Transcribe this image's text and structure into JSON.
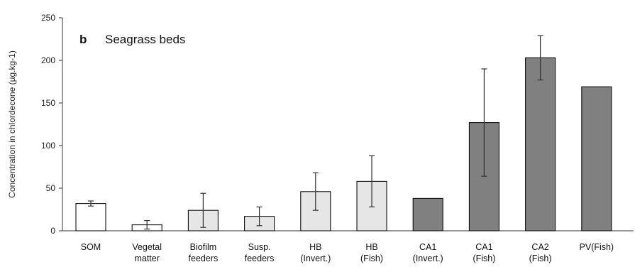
{
  "chart_data": {
    "type": "bar",
    "panel_letter": "b",
    "title": "Seagrass beds",
    "ylabel": "Concentration in chlordecone (µg.kg-1)",
    "xlabel": "",
    "ylim": [
      0,
      250
    ],
    "yticks": [
      0,
      50,
      100,
      150,
      200,
      250
    ],
    "categories": [
      [
        "SOM"
      ],
      [
        "Vegetal",
        "matter"
      ],
      [
        "Biofilm",
        "feeders"
      ],
      [
        "Susp.",
        "feeders"
      ],
      [
        "HB",
        "(Invert.)"
      ],
      [
        "HB",
        "(Fish)"
      ],
      [
        "CA1",
        "(Invert.)"
      ],
      [
        "CA1",
        "(Fish)"
      ],
      [
        "CA2",
        "(Fish)"
      ],
      [
        "PV(Fish)"
      ]
    ],
    "values": [
      32,
      7,
      24,
      17,
      46,
      58,
      38,
      127,
      203,
      169
    ],
    "errors": [
      3,
      5,
      20,
      11,
      22,
      30,
      null,
      63,
      26,
      null
    ],
    "fills": [
      "#ffffff",
      "#ffffff",
      "#e6e6e6",
      "#e6e6e6",
      "#e6e6e6",
      "#e6e6e6",
      "#808080",
      "#808080",
      "#808080",
      "#808080"
    ],
    "grid": false
  }
}
